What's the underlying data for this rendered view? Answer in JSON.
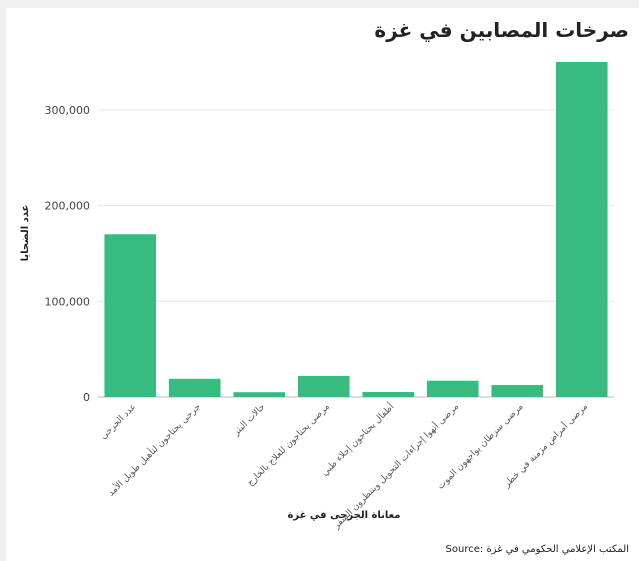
{
  "title": "صرخات المصابين في غزة",
  "source": "Source: المكتب الإعلامي الحكومي في غزة",
  "chart_data": {
    "type": "bar",
    "title": "صرخات المصابين في غزة",
    "xlabel": "معاناة الجرحى في غزة",
    "ylabel": "عدد الضحايا",
    "categories": [
      "عدد الجرحى",
      "جرحى يحتاجون لتأهيل طويل الأمد",
      "حالات البتر",
      "مرضى يحتاجون للعلاج بالخارج",
      "أطفال يحتاجون إجلاء طبي",
      "مرضى أنهوا إجراءات التحويل وينتظرون السفر",
      "مرضى سرطان يواجهون الموت",
      "مرضى أمراض مزمنة في خطر"
    ],
    "values": [
      170000,
      19000,
      5000,
      22000,
      5200,
      17000,
      12500,
      350000
    ],
    "ylim": [
      0,
      350000
    ],
    "yticks": [
      0,
      100000,
      200000,
      300000
    ],
    "ytick_labels": [
      "0",
      "100,000",
      "200,000",
      "300,000"
    ],
    "grid": true,
    "color": "#37bb7f"
  }
}
